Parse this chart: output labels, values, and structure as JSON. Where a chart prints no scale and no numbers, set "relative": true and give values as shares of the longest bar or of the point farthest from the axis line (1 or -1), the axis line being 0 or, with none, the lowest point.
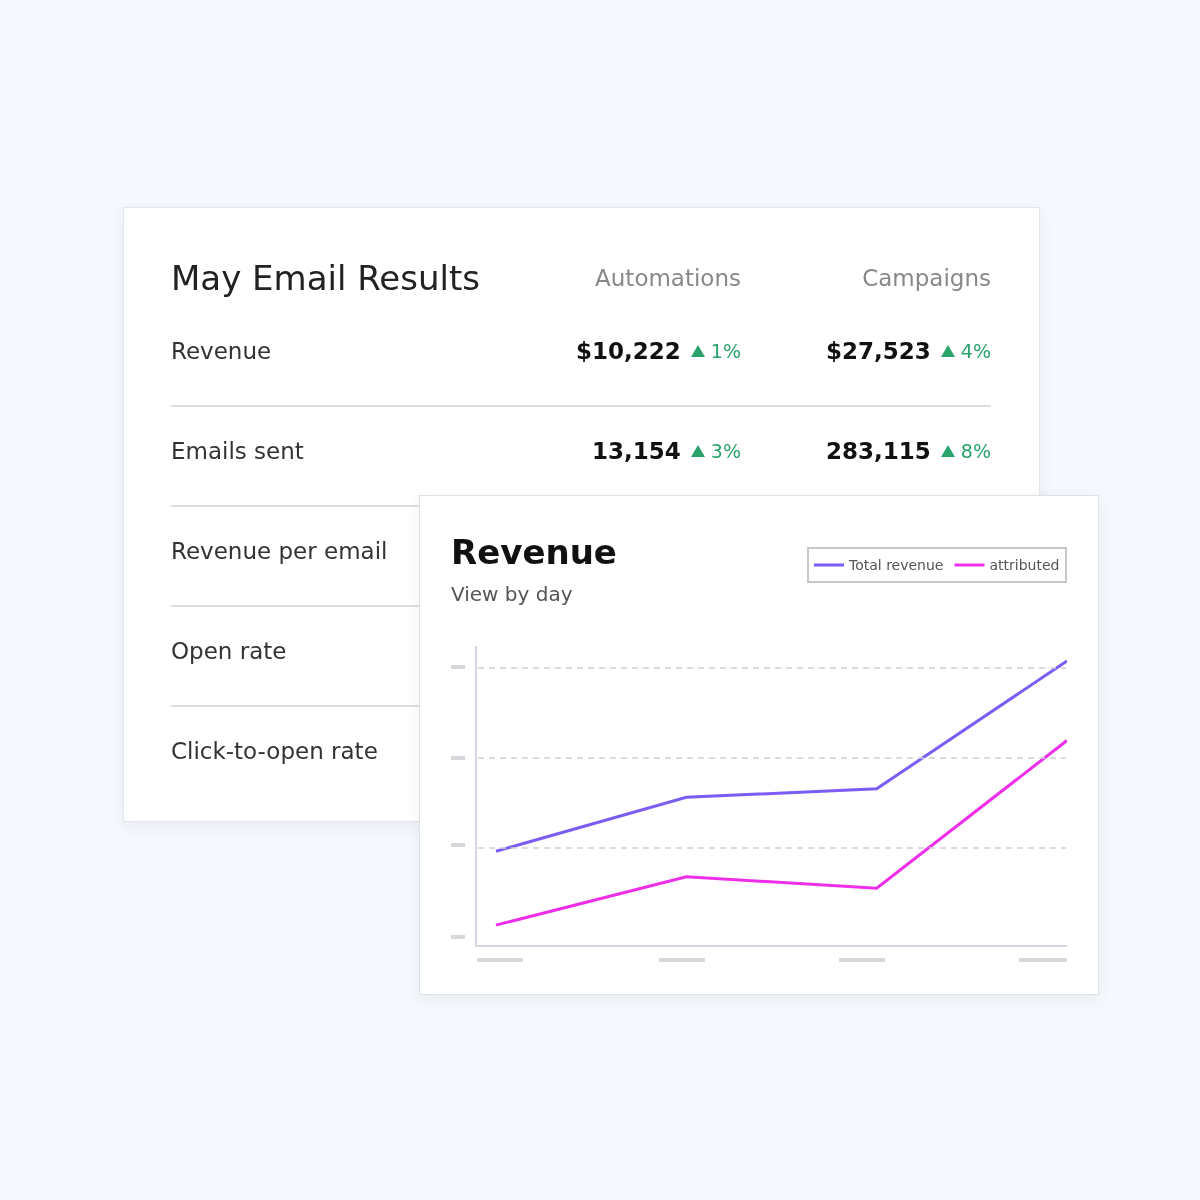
{
  "chart_data": [
    {
      "type": "other",
      "title": "May Email Results",
      "categories": [
        "Revenue",
        "Emails sent",
        "Revenue per email",
        "Open rate",
        "Click-to-open rate"
      ],
      "series": [
        {
          "name": "Automations",
          "values": [
            10222,
            13154,
            null,
            null,
            null
          ],
          "value_labels": [
            "$10,222",
            "13,154",
            null,
            null,
            null
          ]
        },
        {
          "color": "#2aa36b",
          "values": [
            1,
            3,
            null,
            null,
            null
          ],
          "value_labels": [
            "1%",
            "3%",
            null,
            null,
            null
          ]
        },
        {
          "name": "Campaigns",
          "values": [
            27523,
            283115,
            null,
            null,
            null
          ],
          "value_labels": [
            "$27,523",
            "283,115",
            null,
            null,
            null
          ]
        },
        {
          "color": "#2aa36b",
          "values": [
            4,
            8,
            null,
            null,
            null
          ],
          "value_labels": [
            "4%",
            "8%",
            null,
            null,
            null
          ]
        }
      ]
    },
    {
      "type": "line",
      "title": "Revenue",
      "subtitle": "View by day",
      "relative": true,
      "categories": [
        null,
        null,
        null,
        null
      ],
      "legend": "top right",
      "series": [
        {
          "name": "Total revenue",
          "color": "#7b5cf5",
          "values": [
            0.33,
            0.52,
            0.55,
            1
          ]
        },
        {
          "name": "attributed",
          "color": "#ee2ee8",
          "values": [
            0.07,
            0.24,
            0.2,
            0.72
          ]
        }
      ]
    }
  ]
}
